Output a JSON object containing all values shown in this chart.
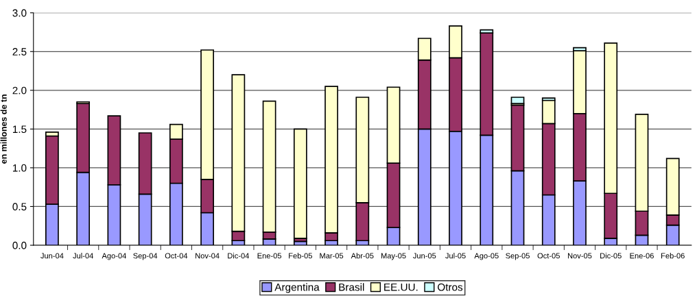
{
  "chart_data": {
    "type": "bar",
    "stacked": true,
    "ylabel": "en millones de tn",
    "categories": [
      "Jun-04",
      "Jul-04",
      "Ago-04",
      "Sep-04",
      "Oct-04",
      "Nov-04",
      "Dic-04",
      "Ene-05",
      "Feb-05",
      "Mar-05",
      "Abr-05",
      "May-05",
      "Jun-05",
      "Jul-05",
      "Ago-05",
      "Sep-05",
      "Oct-05",
      "Nov-05",
      "Dic-05",
      "Ene-06",
      "Feb-06"
    ],
    "series": [
      {
        "name": "Argentina",
        "color": "#9999ff",
        "values": [
          0.53,
          0.94,
          0.78,
          0.66,
          0.8,
          0.42,
          0.06,
          0.08,
          0.05,
          0.06,
          0.06,
          0.23,
          1.5,
          1.47,
          1.42,
          0.96,
          0.65,
          0.83,
          0.09,
          0.13,
          0.26
        ]
      },
      {
        "name": "Brasil",
        "color": "#993366",
        "values": [
          0.88,
          0.89,
          0.89,
          0.79,
          0.57,
          0.43,
          0.12,
          0.09,
          0.04,
          0.1,
          0.49,
          0.83,
          0.89,
          0.95,
          1.32,
          0.85,
          0.92,
          0.87,
          0.58,
          0.31,
          0.13
        ]
      },
      {
        "name": "EE.UU.",
        "color": "#ffffcc",
        "values": [
          0.05,
          0.02,
          null,
          null,
          0.19,
          1.67,
          2.02,
          1.69,
          1.41,
          1.89,
          1.36,
          0.98,
          0.28,
          0.41,
          null,
          0.02,
          0.3,
          0.81,
          1.94,
          1.25,
          0.73
        ]
      },
      {
        "name": "Otros",
        "color": "#ccffff",
        "values": [
          null,
          null,
          null,
          null,
          null,
          null,
          null,
          null,
          null,
          null,
          null,
          null,
          null,
          null,
          0.04,
          0.08,
          0.03,
          0.04,
          null,
          null,
          null
        ]
      }
    ],
    "ylim": [
      0,
      3.0
    ],
    "yticks": [
      {
        "value": 0,
        "label": "0.0"
      },
      {
        "value": 0.5,
        "label": "0.5"
      },
      {
        "value": 1.0,
        "label": "1.0"
      },
      {
        "value": 1.5,
        "label": "1.5"
      },
      {
        "value": 2.0,
        "label": "2.0"
      },
      {
        "value": 2.5,
        "label": "2.5"
      },
      {
        "value": 3.0,
        "label": "3.0"
      }
    ],
    "grid": "y",
    "legend": "bottom"
  }
}
